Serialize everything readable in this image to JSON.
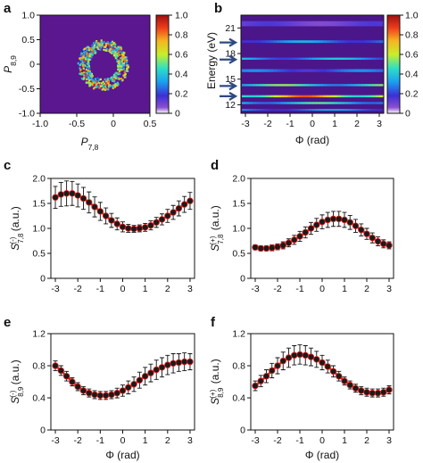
{
  "chart_data": [
    {
      "panel": "a",
      "type": "heatmap",
      "xlabel_main": "P",
      "xlabel_sub": "7,8",
      "ylabel_main": "P",
      "ylabel_sub": "8,9",
      "xlim": [
        -1.0,
        0.5
      ],
      "ylim": [
        -1.0,
        1.0
      ],
      "xticks": [
        "-1.0",
        "-0.5",
        "0",
        "0.5"
      ],
      "yticks": [
        "1.0",
        "0.5",
        "0",
        "-0.5",
        "-1.0"
      ],
      "colorbar_ticks": [
        "1.0",
        "0.8",
        "0.6",
        "0.4",
        "0.2",
        "0"
      ],
      "colorbar_range": [
        0,
        1
      ],
      "ring": {
        "center_x": -0.15,
        "center_y": 0.0,
        "radius": 0.27
      },
      "background": "#5a1790"
    },
    {
      "panel": "b",
      "type": "heatmap",
      "xlabel": "Φ (rad)",
      "ylabel": "Energy (eV)",
      "xlim": [
        -3.2,
        3.2
      ],
      "ylim": [
        11.0,
        22.5
      ],
      "xticks": [
        "-3",
        "-2",
        "-1",
        "0",
        "1",
        "2",
        "3"
      ],
      "yticks": [
        "21",
        "18",
        "15",
        "12"
      ],
      "colorbar_ticks": [
        "1.0",
        "0.8",
        "0.6",
        "0.4",
        "0.2",
        "0"
      ],
      "colorbar_range": [
        0,
        1
      ],
      "arrows_at_energy": [
        19.3,
        17.3,
        14.2,
        13.0
      ],
      "bands": [
        {
          "energy": 21.5,
          "intensity": 0.15,
          "width": 0.6
        },
        {
          "energy": 19.4,
          "intensity": 0.35,
          "width": 0.3
        },
        {
          "energy": 17.4,
          "intensity": 0.4,
          "width": 0.25
        },
        {
          "energy": 16.0,
          "intensity": 0.3,
          "width": 0.35
        },
        {
          "energy": 14.3,
          "intensity": 0.55,
          "width": 0.25
        },
        {
          "energy": 13.0,
          "intensity": 0.85,
          "width": 0.25
        },
        {
          "energy": 12.2,
          "intensity": 0.5,
          "width": 0.25
        },
        {
          "energy": 11.4,
          "intensity": 0.35,
          "width": 0.2
        }
      ]
    },
    {
      "panel": "c",
      "type": "scatter",
      "ylabel_main": "S",
      "ylabel_sub": "7,8",
      "ylabel_sup": "(-)",
      "ylabel_unit": "(a.u.)",
      "xlabel": "",
      "ylim": [
        0,
        2.0
      ],
      "xlim": [
        -3.2,
        3.2
      ],
      "yticks": [
        "2.0",
        "1.5",
        "1.0",
        "0.5",
        "0"
      ],
      "xticks": [
        "-3",
        "-2",
        "-1",
        "0",
        "1",
        "2",
        "3"
      ],
      "x": [
        -3.0,
        -2.75,
        -2.5,
        -2.25,
        -2.0,
        -1.75,
        -1.5,
        -1.25,
        -1.0,
        -0.75,
        -0.5,
        -0.25,
        0.0,
        0.25,
        0.5,
        0.75,
        1.0,
        1.25,
        1.5,
        1.75,
        2.0,
        2.25,
        2.5,
        2.75,
        3.0
      ],
      "y": [
        1.62,
        1.68,
        1.7,
        1.7,
        1.66,
        1.6,
        1.52,
        1.43,
        1.34,
        1.25,
        1.16,
        1.09,
        1.03,
        1.0,
        0.99,
        1.0,
        1.02,
        1.06,
        1.12,
        1.18,
        1.25,
        1.32,
        1.4,
        1.48,
        1.55
      ],
      "err": [
        0.22,
        0.24,
        0.25,
        0.24,
        0.23,
        0.22,
        0.21,
        0.2,
        0.18,
        0.16,
        0.14,
        0.12,
        0.1,
        0.08,
        0.07,
        0.07,
        0.08,
        0.09,
        0.1,
        0.11,
        0.13,
        0.14,
        0.15,
        0.16,
        0.17
      ]
    },
    {
      "panel": "d",
      "type": "scatter",
      "ylabel_main": "S",
      "ylabel_sub": "7,8",
      "ylabel_sup": "(+)",
      "ylabel_unit": "(a.u.)",
      "xlabel": "",
      "ylim": [
        0,
        2.0
      ],
      "xlim": [
        -3.2,
        3.2
      ],
      "yticks": [
        "2.0",
        "1.5",
        "1.0",
        "0.5",
        "0"
      ],
      "xticks": [
        "-3",
        "-2",
        "-1",
        "0",
        "1",
        "2",
        "3"
      ],
      "x": [
        -3.0,
        -2.75,
        -2.5,
        -2.25,
        -2.0,
        -1.75,
        -1.5,
        -1.25,
        -1.0,
        -0.75,
        -0.5,
        -0.25,
        0.0,
        0.25,
        0.5,
        0.75,
        1.0,
        1.25,
        1.5,
        1.75,
        2.0,
        2.25,
        2.5,
        2.75,
        3.0
      ],
      "y": [
        0.62,
        0.6,
        0.6,
        0.61,
        0.63,
        0.66,
        0.71,
        0.77,
        0.84,
        0.92,
        1.0,
        1.07,
        1.13,
        1.17,
        1.19,
        1.19,
        1.17,
        1.12,
        1.05,
        0.97,
        0.89,
        0.81,
        0.74,
        0.69,
        0.66
      ],
      "err": [
        0.05,
        0.05,
        0.05,
        0.06,
        0.06,
        0.07,
        0.08,
        0.09,
        0.1,
        0.11,
        0.12,
        0.13,
        0.14,
        0.15,
        0.15,
        0.15,
        0.15,
        0.14,
        0.13,
        0.12,
        0.11,
        0.1,
        0.09,
        0.08,
        0.07
      ]
    },
    {
      "panel": "e",
      "type": "scatter",
      "ylabel_main": "S",
      "ylabel_sub": "8,9",
      "ylabel_sup": "(-)",
      "ylabel_unit": "(a.u.)",
      "xlabel": "Φ (rad)",
      "ylim": [
        0,
        1.2
      ],
      "xlim": [
        -3.2,
        3.2
      ],
      "yticks": [
        "1.2",
        "0.8",
        "0.4",
        "0"
      ],
      "xticks": [
        "-3",
        "-2",
        "-1",
        "0",
        "1",
        "2",
        "3"
      ],
      "x": [
        -3.0,
        -2.75,
        -2.5,
        -2.25,
        -2.0,
        -1.75,
        -1.5,
        -1.25,
        -1.0,
        -0.75,
        -0.5,
        -0.25,
        0.0,
        0.25,
        0.5,
        0.75,
        1.0,
        1.25,
        1.5,
        1.75,
        2.0,
        2.25,
        2.5,
        2.75,
        3.0
      ],
      "y": [
        0.8,
        0.74,
        0.67,
        0.6,
        0.54,
        0.49,
        0.46,
        0.44,
        0.43,
        0.43,
        0.44,
        0.46,
        0.49,
        0.53,
        0.57,
        0.62,
        0.67,
        0.71,
        0.75,
        0.78,
        0.81,
        0.83,
        0.84,
        0.85,
        0.85
      ],
      "err": [
        0.06,
        0.06,
        0.06,
        0.05,
        0.05,
        0.05,
        0.05,
        0.05,
        0.05,
        0.05,
        0.05,
        0.06,
        0.07,
        0.08,
        0.09,
        0.1,
        0.11,
        0.11,
        0.12,
        0.12,
        0.12,
        0.12,
        0.11,
        0.11,
        0.1
      ]
    },
    {
      "panel": "f",
      "type": "scatter",
      "ylabel_main": "S",
      "ylabel_sub": "8,9",
      "ylabel_sup": "(+)",
      "ylabel_unit": "(a.u.)",
      "xlabel": "Φ (rad)",
      "ylim": [
        0,
        1.2
      ],
      "xlim": [
        -3.2,
        3.2
      ],
      "yticks": [
        "1.2",
        "0.8",
        "0.4",
        "0"
      ],
      "xticks": [
        "-3",
        "-2",
        "-1",
        "0",
        "1",
        "2",
        "3"
      ],
      "x": [
        -3.0,
        -2.75,
        -2.5,
        -2.25,
        -2.0,
        -1.75,
        -1.5,
        -1.25,
        -1.0,
        -0.75,
        -0.5,
        -0.25,
        0.0,
        0.25,
        0.5,
        0.75,
        1.0,
        1.25,
        1.5,
        1.75,
        2.0,
        2.25,
        2.5,
        2.75,
        3.0
      ],
      "y": [
        0.55,
        0.61,
        0.67,
        0.74,
        0.8,
        0.86,
        0.9,
        0.93,
        0.94,
        0.93,
        0.91,
        0.88,
        0.84,
        0.79,
        0.73,
        0.67,
        0.61,
        0.56,
        0.52,
        0.49,
        0.47,
        0.46,
        0.46,
        0.47,
        0.5
      ],
      "err": [
        0.06,
        0.07,
        0.08,
        0.09,
        0.1,
        0.11,
        0.12,
        0.12,
        0.12,
        0.12,
        0.11,
        0.1,
        0.09,
        0.08,
        0.07,
        0.06,
        0.05,
        0.05,
        0.05,
        0.05,
        0.05,
        0.05,
        0.05,
        0.05,
        0.05
      ]
    }
  ],
  "colors": {
    "marker_fill": "#1a1a1a",
    "fit_line": "#e0201c",
    "error_bar": "#111111",
    "axis": "#111111"
  }
}
